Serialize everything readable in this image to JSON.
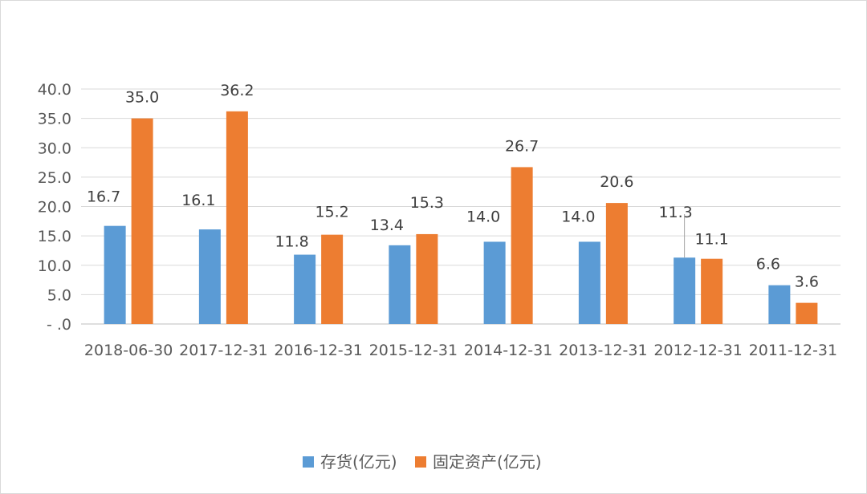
{
  "chart_data": {
    "type": "bar",
    "categories": [
      "2018-06-30",
      "2017-12-31",
      "2016-12-31",
      "2015-12-31",
      "2014-12-31",
      "2013-12-31",
      "2012-12-31",
      "2011-12-31"
    ],
    "series": [
      {
        "name": "存货(亿元)",
        "values": [
          16.7,
          16.1,
          11.8,
          13.4,
          14.0,
          14.0,
          11.3,
          6.6
        ],
        "labels": [
          "16.7",
          "16.1",
          "11.8",
          "13.4",
          "14.0",
          "14.0",
          "11.3",
          "6.6"
        ],
        "color": "#5b9bd5"
      },
      {
        "name": "固定资产(亿元)",
        "values": [
          35.0,
          36.2,
          15.2,
          15.3,
          26.7,
          20.6,
          11.1,
          3.6
        ],
        "labels": [
          "35.0",
          "36.2",
          "15.2",
          "15.3",
          "26.7",
          "20.6",
          "11.1",
          "3.6"
        ],
        "color": "#ed7d31"
      }
    ],
    "ylim": [
      0,
      40
    ],
    "yticks": [
      0,
      5,
      10,
      15,
      20,
      25,
      30,
      35,
      40
    ],
    "ytick_labels": [
      "- .0",
      "5.0",
      "10.0",
      "15.0",
      "20.0",
      "25.0",
      "30.0",
      "35.0",
      "40.0"
    ],
    "grid": true,
    "legend_position": "bottom",
    "title": "",
    "xlabel": "",
    "ylabel": ""
  }
}
